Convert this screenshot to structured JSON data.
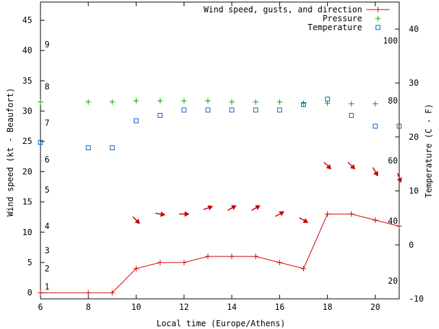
{
  "chart_data": {
    "type": "line",
    "xlabel": "Local time (Europe/Athens)",
    "ylabel": "Wind speed (kt - Beaufort)",
    "y2label": "Temperature (C - F)",
    "xlim": [
      6,
      21
    ],
    "ylim": [
      -1,
      48
    ],
    "y2lim": [
      -10,
      45
    ],
    "x_ticks": [
      6,
      8,
      10,
      12,
      14,
      16,
      18,
      20
    ],
    "y_ticks": [
      0,
      5,
      10,
      15,
      20,
      25,
      30,
      35,
      40,
      45
    ],
    "y2_ticks": [
      -10,
      0,
      10,
      20,
      30,
      40
    ],
    "beaufort_marks": [
      {
        "label": "1",
        "kt": 1
      },
      {
        "label": "2",
        "kt": 4
      },
      {
        "label": "3",
        "kt": 7
      },
      {
        "label": "4",
        "kt": 11
      },
      {
        "label": "5",
        "kt": 17
      },
      {
        "label": "6",
        "kt": 22
      },
      {
        "label": "7",
        "kt": 28
      },
      {
        "label": "8",
        "kt": 34
      },
      {
        "label": "9",
        "kt": 41
      }
    ],
    "fahrenheit_marks": [
      {
        "label": "20",
        "c": -6.7
      },
      {
        "label": "40",
        "c": 4.4
      },
      {
        "label": "60",
        "c": 15.6
      },
      {
        "label": "80",
        "c": 26.7
      },
      {
        "label": "100",
        "c": 37.8
      }
    ],
    "series": [
      {
        "name": "Wind speed, gusts, and direction",
        "color": "#cc0000",
        "x": [
          6,
          8,
          9,
          10,
          11,
          12,
          13,
          14,
          15,
          16,
          17,
          18,
          19,
          20,
          21
        ],
        "values": [
          0,
          0,
          0,
          4,
          5,
          5,
          6,
          6,
          6,
          5,
          4,
          13,
          13,
          12,
          11
        ],
        "direction_deg": [
          null,
          null,
          null,
          315,
          280,
          270,
          250,
          240,
          240,
          240,
          300,
          315,
          315,
          330,
          340
        ]
      },
      {
        "name": "Pressure",
        "color": "#00a000",
        "x": [
          6,
          8,
          9,
          10,
          11,
          12,
          13,
          14,
          15,
          16,
          17,
          18,
          19,
          20
        ],
        "values": [
          31.5,
          31.5,
          31.5,
          31.7,
          31.7,
          31.7,
          31.7,
          31.5,
          31.5,
          31.5,
          31.3,
          31.3,
          31.2,
          31.2
        ]
      },
      {
        "name": "Temperature",
        "color": "#0060c0",
        "axis": "y2",
        "x": [
          6,
          8,
          9,
          10,
          11,
          12,
          13,
          14,
          15,
          16,
          17,
          18,
          19,
          20,
          21
        ],
        "values": [
          19,
          18,
          18,
          23,
          24,
          25,
          25,
          25,
          25,
          25,
          26,
          27,
          24,
          22,
          22
        ]
      }
    ]
  }
}
